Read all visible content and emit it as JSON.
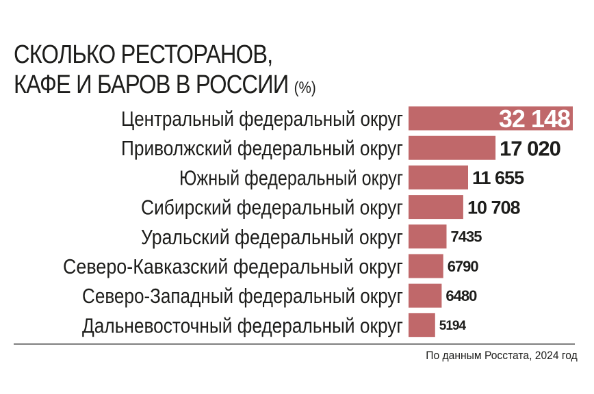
{
  "title_line1": "СКОЛЬКО РЕСТОРАНОВ,",
  "title_line2": "КАФЕ И БАРОВ В РОССИИ",
  "title_unit": "(%)",
  "source": "По данным Росстата, 2024 год",
  "colors": {
    "bar": "#c0686a",
    "text": "#1d1d1b",
    "inside_label": "#ffffff",
    "rule": "#555555"
  },
  "chart_data": {
    "type": "bar",
    "orientation": "horizontal",
    "title": "СКОЛЬКО РЕСТОРАНОВ, КАФЕ И БАРОВ В РОССИИ (%)",
    "categories": [
      "Центральный федеральный округ",
      "Приволжский федеральный округ",
      "Южный федеральный округ",
      "Сибирский федеральный округ",
      "Уральский федеральный округ",
      "Северо-Кавказский федеральный округ",
      "Северо-Западный федеральный округ",
      "Дальневосточный федеральный округ"
    ],
    "values": [
      32148,
      17020,
      11655,
      10708,
      7435,
      6790,
      6480,
      5194
    ],
    "value_labels": [
      "32 148",
      "17 020",
      "11 655",
      "10 708",
      "7435",
      "6790",
      "6480",
      "5194"
    ],
    "xlim": [
      0,
      32148
    ],
    "grid": false,
    "legend": "none"
  }
}
